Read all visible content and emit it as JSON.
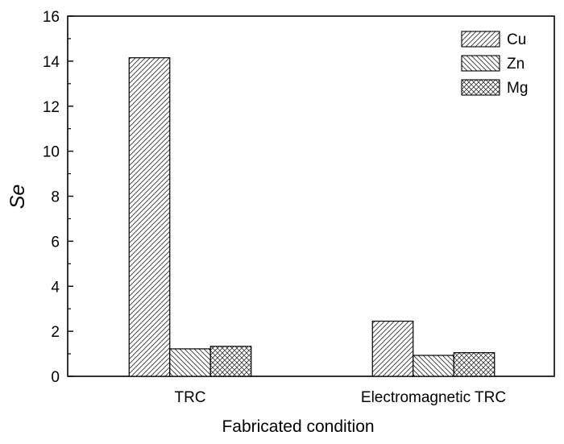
{
  "chart_data": {
    "type": "bar",
    "categories": [
      "TRC",
      "Electromagnetic TRC"
    ],
    "series": [
      {
        "name": "Cu",
        "values": [
          14.15,
          2.45
        ],
        "pattern": "diag-right"
      },
      {
        "name": "Zn",
        "values": [
          1.22,
          0.93
        ],
        "pattern": "diag-left"
      },
      {
        "name": "Mg",
        "values": [
          1.33,
          1.05
        ],
        "pattern": "cross"
      }
    ],
    "title": "",
    "xlabel": "Fabricated condition",
    "ylabel": "Se",
    "ylim": [
      0,
      16
    ],
    "yticks": [
      0,
      2,
      4,
      6,
      8,
      10,
      12,
      14,
      16
    ],
    "grid": false,
    "legend_position": "top-right",
    "colors": {
      "stroke": "#000000",
      "fill": "#ffffff",
      "hatch": "#333333"
    }
  }
}
